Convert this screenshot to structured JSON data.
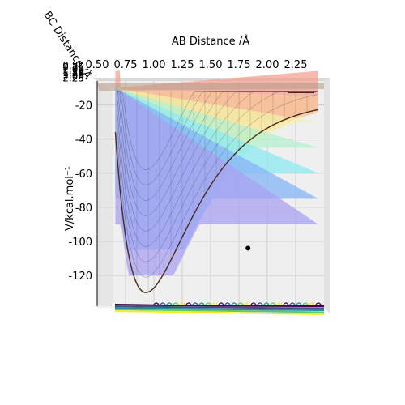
{
  "chart_data": {
    "type": "surface",
    "title": "",
    "xlabel": "AB Distance /Å",
    "ylabel": "BC Distance /Å",
    "zlabel": "V/kcal.mol⁻¹",
    "x_ticks": [
      "0.50",
      "0.75",
      "1.00",
      "1.25",
      "1.50",
      "1.75",
      "2.00",
      "2.25"
    ],
    "z_ticks": [
      "-20",
      "-40",
      "-60",
      "-80",
      "-100",
      "-120"
    ],
    "y_ticks": [
      "0.50",
      "0.75",
      "1.00",
      "1.25",
      "1.50",
      "1.75",
      "2.00",
      "2.25"
    ],
    "zlim": [
      -138,
      -5
    ],
    "x_range": [
      0.5,
      2.5
    ],
    "marked_point": {
      "x": 1.83,
      "z": -104
    },
    "grid": true,
    "colormap": "rainbow contour fill over a dark-edged surface mesh",
    "colors": {
      "band_red": "#f4a093",
      "band_orange": "#f7c597",
      "band_yellow": "#f4f0a8",
      "band_green": "#b6f0cf",
      "band_cyan": "#8eeaf0",
      "band_blue": "#86b4f7",
      "band_purple": "#a8a1f0",
      "surface_edge": "#4a2a1a",
      "pane": "#efefef"
    }
  }
}
